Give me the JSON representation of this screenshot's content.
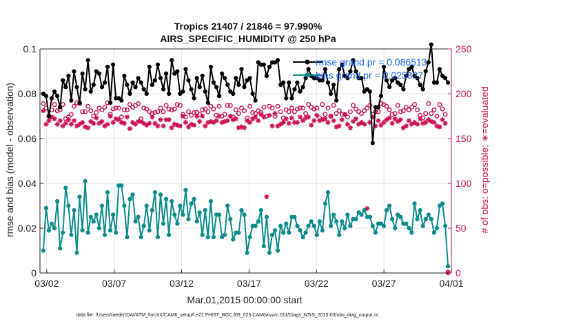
{
  "chart_data": {
    "type": "line",
    "title_line1": "Tropics 21407 / 21846 = 97.990%",
    "title_line2": "AIRS_SPECIFIC_HUMIDITY @ 250 hPa",
    "ylabel_left": "rmse and bias (model - observation)",
    "ylabel_right": "# of obs: o=possible; ∗=evaluated",
    "xlabel": "Mar.01,2015 00:00:00 start",
    "footnote": "data file: /Users/raeder/DAI/ATM_forcXX/CAM6_setup/f.e21.FHIST_BGC.f09_025.CAM6assim.011/Diags_NTrS_2015-03/obs_diag_output.nc",
    "ylim_left": [
      0,
      0.1
    ],
    "ylim_right": [
      0,
      250
    ],
    "xlim": [
      1.5,
      32.0
    ],
    "yticks_left": [
      "0",
      "0.02",
      "0.04",
      "0.06",
      "0.08",
      "0.1"
    ],
    "yticks_left_values": [
      0,
      0.02,
      0.04,
      0.06,
      0.08,
      0.1
    ],
    "yticks_right": [
      "0",
      "50",
      "100",
      "150",
      "200",
      "250"
    ],
    "yticks_right_values": [
      0,
      50,
      100,
      150,
      200,
      250
    ],
    "xticks": [
      "03/02",
      "03/07",
      "03/12",
      "03/17",
      "03/22",
      "03/27",
      "04/01"
    ],
    "xticks_values": [
      2,
      7,
      12,
      17,
      22,
      27,
      32
    ],
    "grid": true,
    "legend_position": "top-right",
    "series": [
      {
        "name": "rmse",
        "legend": "rmse grand pr = 0.086513",
        "color": "#000000",
        "axis": "left",
        "values": [
          0.08,
          0.079,
          0.07,
          0.078,
          0.081,
          0.079,
          0.074,
          0.086,
          0.083,
          0.088,
          0.077,
          0.09,
          0.083,
          0.076,
          0.089,
          0.082,
          0.095,
          0.081,
          0.084,
          0.09,
          0.089,
          0.083,
          0.085,
          0.092,
          0.076,
          0.093,
          0.078,
          0.078,
          0.077,
          0.088,
          0.084,
          0.08,
          0.085,
          0.083,
          0.087,
          0.085,
          0.082,
          0.08,
          0.092,
          0.084,
          0.086,
          0.093,
          0.087,
          0.082,
          0.089,
          0.08,
          0.095,
          0.089,
          0.09,
          0.08,
          0.081,
          0.091,
          0.086,
          0.082,
          0.078,
          0.087,
          0.083,
          0.088,
          0.081,
          0.076,
          0.092,
          0.085,
          0.083,
          0.079,
          0.089,
          0.087,
          0.084,
          0.081,
          0.08,
          0.087,
          0.084,
          0.091,
          0.083,
          0.086,
          0.087,
          0.08,
          0.077,
          0.094,
          0.093,
          0.093,
          0.088,
          0.092,
          0.094,
          0.094,
          0.095,
          0.084,
          0.085,
          0.078,
          0.085,
          0.078,
          0.082,
          0.085,
          0.081,
          0.083,
          0.087,
          0.091,
          0.088,
          0.087,
          0.087,
          0.086,
          0.086,
          0.091,
          0.085,
          0.08,
          0.084,
          0.077,
          0.091,
          0.093,
          0.088,
          0.087,
          0.09,
          0.095,
          0.09,
          0.087,
          0.087,
          0.081,
          0.082,
          0.081,
          0.058,
          0.074,
          0.074,
          0.079,
          0.092,
          0.086,
          0.083,
          0.086,
          0.087,
          0.085,
          0.084,
          0.082,
          0.088,
          0.091,
          0.092,
          0.088,
          0.087,
          0.084,
          0.082,
          0.09,
          0.094,
          0.102,
          0.085,
          0.085,
          0.091,
          0.088,
          0.087,
          0.085
        ]
      },
      {
        "name": "bias",
        "legend": "bias grand pr = 0.025827",
        "color": "#0a8a8a",
        "axis": "left",
        "values": [
          0.01,
          0.029,
          0.019,
          0.022,
          0.02,
          0.032,
          0.011,
          0.018,
          0.038,
          0.03,
          0.017,
          0.028,
          0.009,
          0.034,
          0.019,
          0.041,
          0.018,
          0.025,
          0.023,
          0.026,
          0.02,
          0.03,
          0.017,
          0.036,
          0.019,
          0.026,
          0.018,
          0.039,
          0.039,
          0.03,
          0.016,
          0.033,
          0.035,
          0.023,
          0.025,
          0.016,
          0.021,
          0.03,
          0.019,
          0.028,
          0.036,
          0.016,
          0.035,
          0.022,
          0.033,
          0.017,
          0.032,
          0.026,
          0.022,
          0.03,
          0.026,
          0.037,
          0.024,
          0.031,
          0.033,
          0.023,
          0.027,
          0.017,
          0.028,
          0.016,
          0.032,
          0.016,
          0.026,
          0.026,
          0.016,
          0.017,
          0.03,
          0.024,
          0.015,
          0.018,
          0.018,
          0.028,
          0.026,
          0.009,
          0.016,
          0.021,
          0.021,
          0.023,
          0.028,
          0.012,
          0.025,
          0.009,
          0.017,
          0.019,
          0.01,
          0.021,
          0.018,
          0.022,
          0.018,
          0.025,
          0.025,
          0.021,
          0.019,
          0.016,
          0.018,
          0.021,
          0.023,
          0.021,
          0.017,
          0.023,
          0.019,
          0.031,
          0.036,
          0.021,
          0.026,
          0.023,
          0.017,
          0.023,
          0.02,
          0.026,
          0.021,
          0.024,
          0.024,
          0.027,
          0.026,
          0.028,
          0.025,
          0.025,
          0.021,
          0.018,
          0.022,
          0.022,
          0.021,
          0.028,
          0.03,
          0.024,
          0.02,
          0.026,
          0.025,
          0.022,
          0.022,
          0.02,
          0.018,
          0.031,
          0.024,
          0.028,
          0.021,
          0.024,
          0.026,
          0.024,
          0.018,
          0.02,
          0.03,
          0.031,
          0.021,
          0.003
        ]
      },
      {
        "name": "possible",
        "legend": "",
        "color": "#cc1155",
        "axis": "right",
        "marker": "o",
        "values": [
          189,
          184,
          175,
          182,
          188,
          181,
          182,
          188,
          172,
          174,
          177,
          186,
          190,
          189,
          180,
          180,
          186,
          181,
          175,
          179,
          184,
          182,
          185,
          190,
          177,
          183,
          184,
          184,
          174,
          182,
          182,
          188,
          185,
          187,
          189,
          172,
          184,
          183,
          180,
          178,
          179,
          180,
          184,
          180,
          187,
          183,
          182,
          183,
          188,
          187,
          177,
          174,
          180,
          176,
          179,
          179,
          177,
          182,
          183,
          180,
          186,
          183,
          176,
          186,
          175,
          177,
          187,
          187,
          174,
          182,
          178,
          184,
          181,
          173,
          186,
          179,
          178,
          181,
          179,
          185,
          175,
          186,
          184,
          175,
          186,
          180,
          173,
          182,
          180,
          184,
          180,
          183,
          184,
          184,
          178,
          188,
          185,
          183,
          184,
          173,
          188,
          177,
          184,
          175,
          187,
          178,
          181,
          177,
          177,
          174,
          180,
          187,
          183,
          180,
          178,
          181,
          184,
          187,
          177,
          180,
          180,
          189,
          188,
          186,
          182,
          177,
          178,
          187,
          180,
          181,
          185,
          182,
          185,
          188,
          182,
          176,
          173,
          178,
          189,
          178,
          182,
          175,
          188,
          183,
          177,
          1
        ]
      },
      {
        "name": "evaluated",
        "legend": "",
        "color": "#cc1155",
        "axis": "right",
        "marker": "*",
        "values": [
          181,
          166,
          170,
          174,
          172,
          166,
          170,
          164,
          167,
          171,
          166,
          170,
          164,
          166,
          168,
          163,
          162,
          169,
          167,
          173,
          167,
          169,
          164,
          166,
          175,
          168,
          172,
          171,
          168,
          167,
          174,
          161,
          168,
          166,
          169,
          169,
          167,
          165,
          167,
          174,
          167,
          164,
          171,
          164,
          171,
          171,
          162,
          166,
          165,
          164,
          175,
          168,
          163,
          166,
          165,
          175,
          169,
          175,
          164,
          168,
          169,
          168,
          170,
          175,
          168,
          169,
          170,
          175,
          171,
          172,
          162,
          163,
          162,
          170,
          168,
          172,
          174,
          170,
          177,
          174,
          85,
          176,
          164,
          178,
          164,
          166,
          168,
          172,
          167,
          173,
          168,
          168,
          174,
          170,
          173,
          174,
          165,
          170,
          176,
          170,
          171,
          172,
          168,
          175,
          170,
          163,
          164,
          171,
          177,
          166,
          162,
          169,
          172,
          166,
          168,
          166,
          72,
          168,
          174,
          164,
          170,
          165,
          168,
          171,
          173,
          167,
          172,
          169,
          171,
          162,
          164,
          170,
          166,
          168,
          166,
          172,
          167,
          168,
          171,
          169,
          168,
          164,
          163,
          171,
          167,
          0
        ]
      }
    ]
  }
}
